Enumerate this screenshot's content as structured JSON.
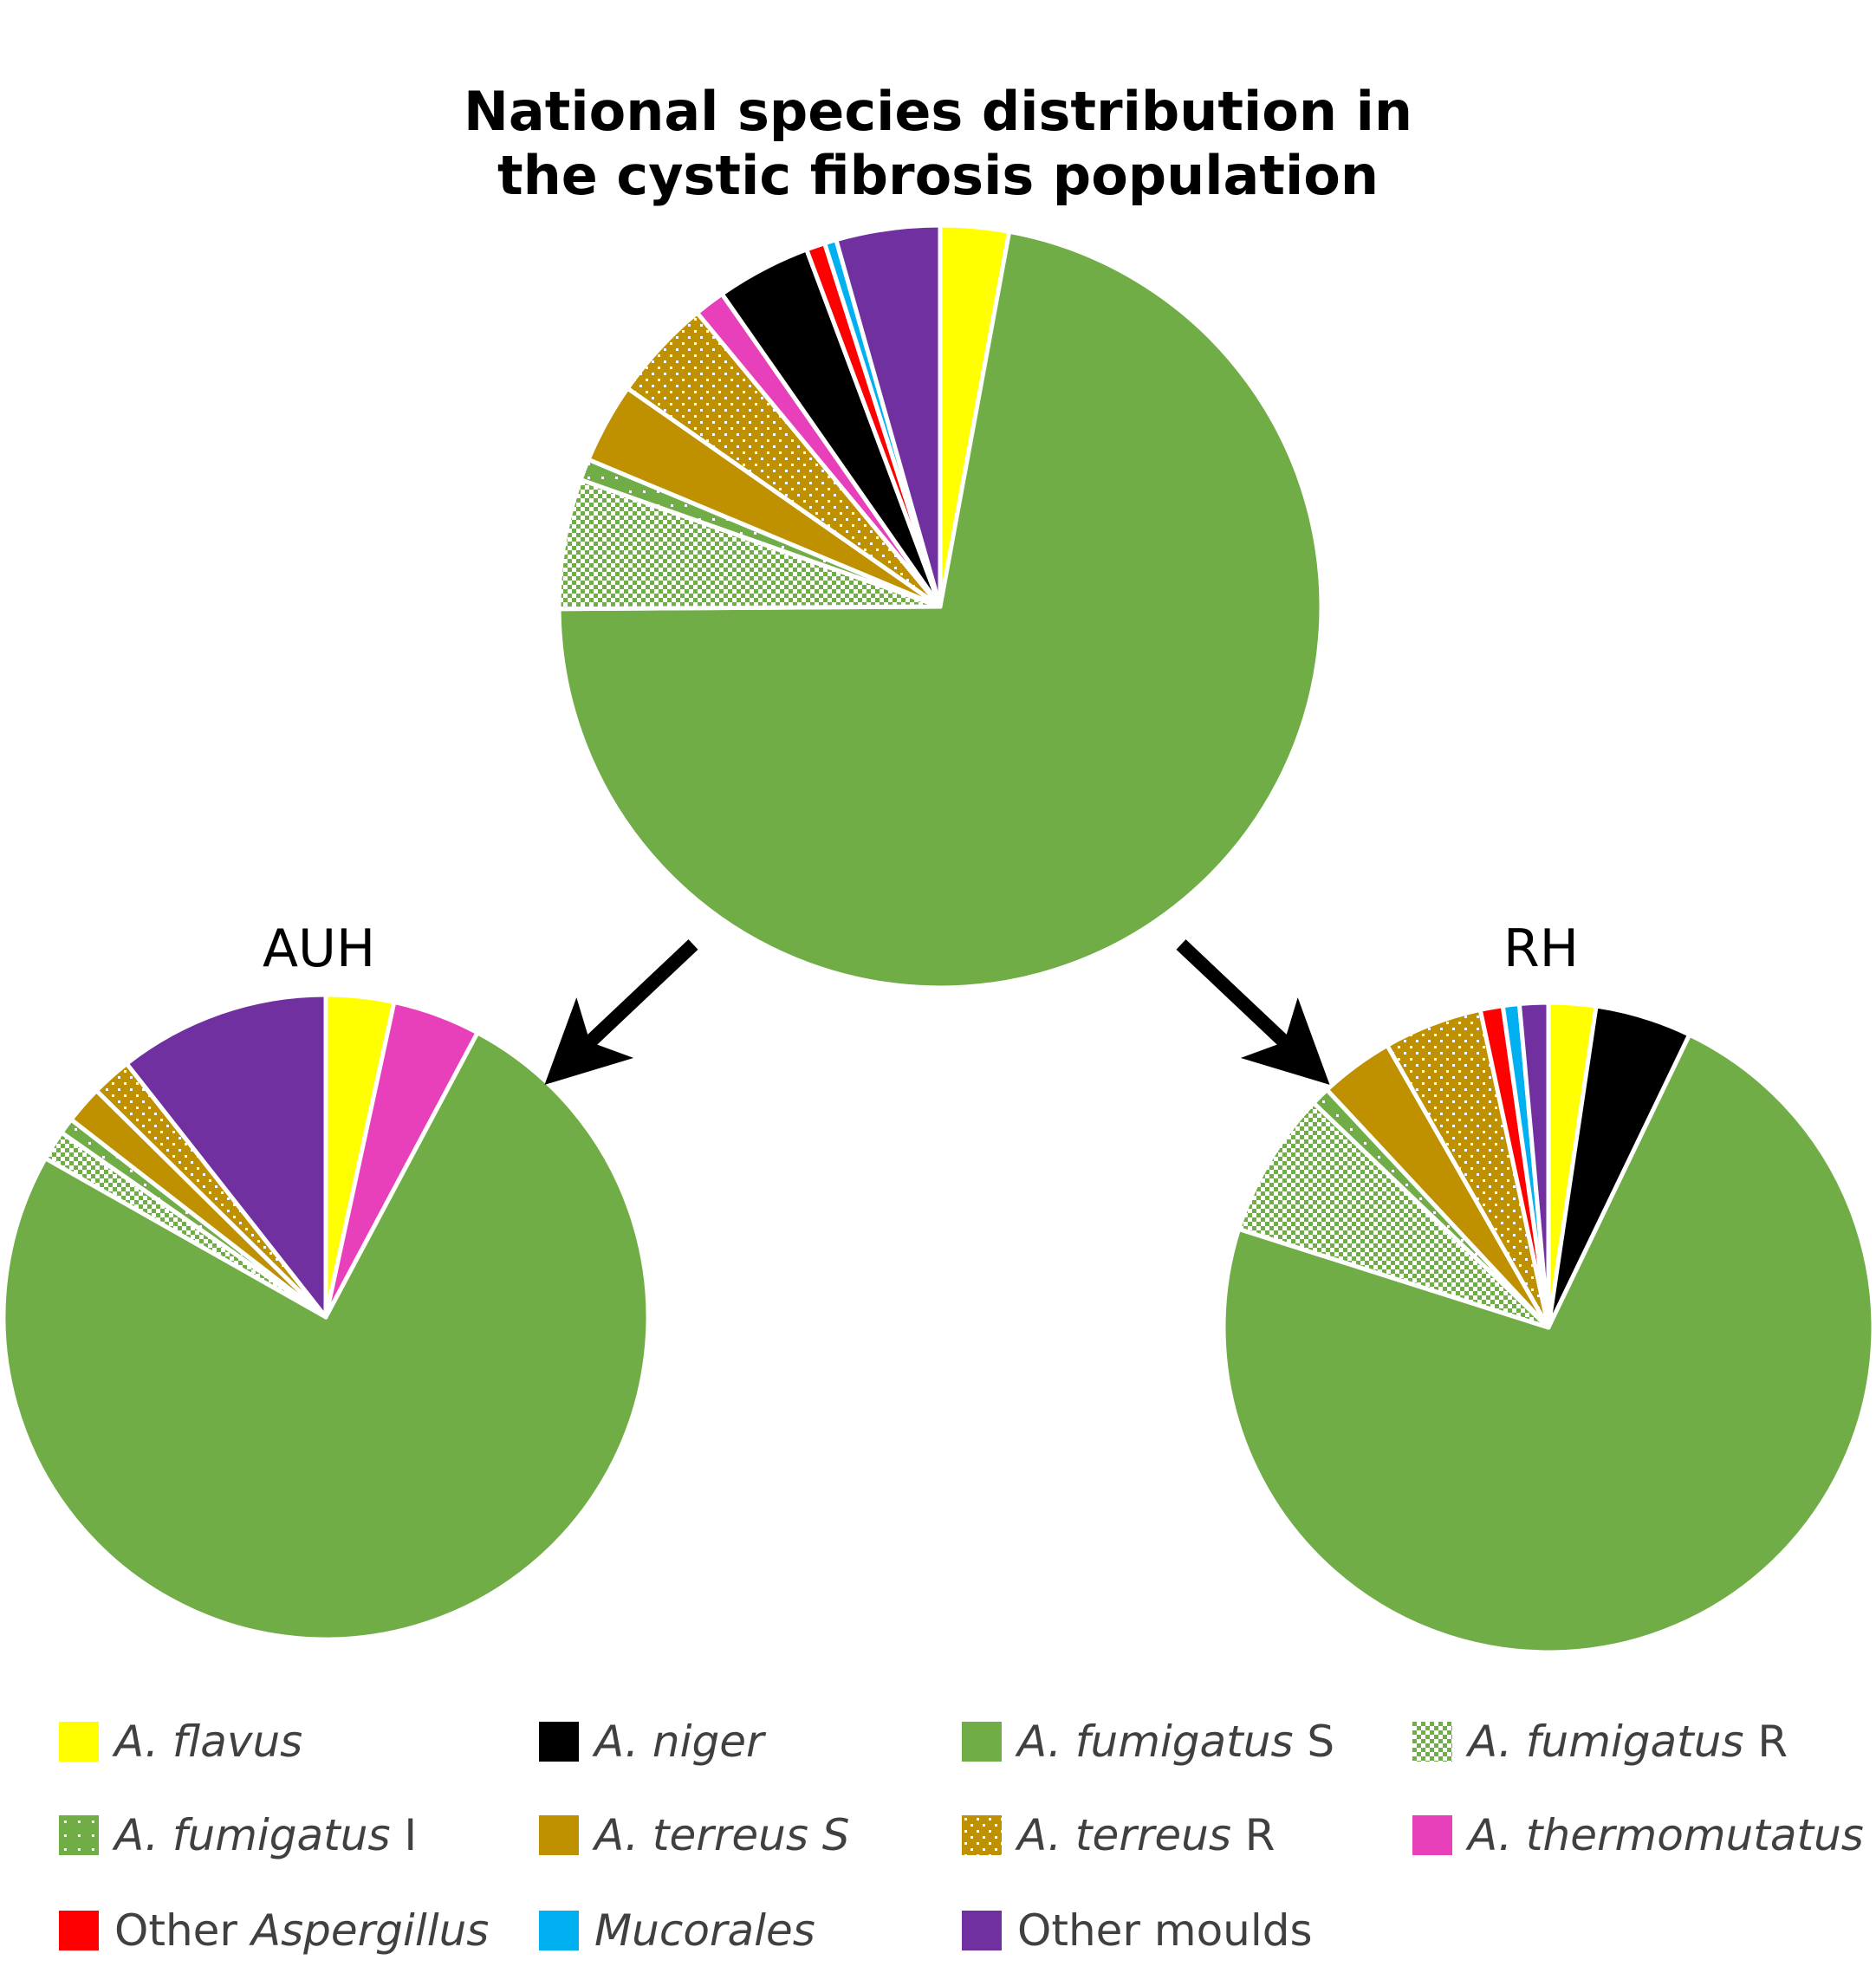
{
  "title_line1": "National species distribution in",
  "title_line2": "the cystic fibrosis population",
  "colors": {
    "A. flavus": "#ffff00",
    "A. niger": "#000000",
    "A. fumigatus S": "#70ad47",
    "A. fumigatus R": "#70ad47",
    "A. fumigatus I": "#70ad47",
    "A. terreus S": "#bf9000",
    "A. terreus R": "#bf9000",
    "A. thermomutatus": "#e83fba",
    "Other Aspergillus": "#ff0000",
    "Mucorales": "#00b0f0",
    "Other moulds": "#7030a0"
  },
  "patterns": {
    "A. fumigatus R": "checker",
    "A. fumigatus I": "sparse-dots",
    "A. terreus R": "dots"
  },
  "legend": [
    {
      "italic": "A. flavus",
      "plain": "",
      "key": "A. flavus"
    },
    {
      "italic": "A. niger",
      "plain": "",
      "key": "A. niger"
    },
    {
      "italic": "A. fumigatus",
      "plain": " S",
      "key": "A. fumigatus S"
    },
    {
      "italic": "A. fumigatus",
      "plain": " R",
      "key": "A. fumigatus R"
    },
    {
      "italic": "A. fumigatus",
      "plain": " I",
      "key": "A. fumigatus I"
    },
    {
      "italic": "A. terreus S",
      "plain": "",
      "key": "A. terreus S"
    },
    {
      "italic": "A. terreus",
      "plain": " R",
      "key": "A. terreus R"
    },
    {
      "italic": "A. thermomutatus",
      "plain": "",
      "key": "A. thermomutatus"
    },
    {
      "prefix": "Other ",
      "italic": "Aspergillus",
      "plain": "",
      "key": "Other Aspergillus"
    },
    {
      "italic": "Mucorales",
      "plain": "",
      "key": "Mucorales"
    },
    {
      "prefix": "Other moulds",
      "italic": "",
      "plain": "",
      "key": "Other moulds"
    }
  ],
  "chart_data": [
    {
      "type": "pie",
      "title": "National species distribution in the cystic fibrosis population",
      "unit": "percent",
      "slices": [
        {
          "label": "A. flavus",
          "value": 2.9
        },
        {
          "label": "A. fumigatus S",
          "value": 72.0
        },
        {
          "label": "A. fumigatus R",
          "value": 5.5
        },
        {
          "label": "A. fumigatus I",
          "value": 0.9
        },
        {
          "label": "A. terreus S",
          "value": 3.4
        },
        {
          "label": "A. terreus R",
          "value": 4.3
        },
        {
          "label": "A. thermomutatus",
          "value": 1.3
        },
        {
          "label": "A. niger",
          "value": 4.0
        },
        {
          "label": "Other Aspergillus",
          "value": 0.8
        },
        {
          "label": "Mucorales",
          "value": 0.5
        },
        {
          "label": "Other moulds",
          "value": 4.4
        }
      ]
    },
    {
      "type": "pie",
      "title": "AUH",
      "unit": "percent",
      "slices": [
        {
          "label": "A. flavus",
          "value": 3.4
        },
        {
          "label": "A. thermomutatus",
          "value": 4.4
        },
        {
          "label": "A. fumigatus S",
          "value": 75.4
        },
        {
          "label": "A. fumigatus R",
          "value": 1.5
        },
        {
          "label": "A. fumigatus I",
          "value": 0.8
        },
        {
          "label": "A. terreus S",
          "value": 1.9
        },
        {
          "label": "A. terreus R",
          "value": 2.0
        },
        {
          "label": "Other moulds",
          "value": 10.6
        }
      ]
    },
    {
      "type": "pie",
      "title": "RH",
      "unit": "percent",
      "slices": [
        {
          "label": "A. flavus",
          "value": 2.3
        },
        {
          "label": "A. niger",
          "value": 4.7
        },
        {
          "label": "A. fumigatus S",
          "value": 71.3
        },
        {
          "label": "A. fumigatus R",
          "value": 7.1
        },
        {
          "label": "A. fumigatus I",
          "value": 0.9
        },
        {
          "label": "A. terreus S",
          "value": 3.6
        },
        {
          "label": "A. terreus R",
          "value": 4.8
        },
        {
          "label": "Other Aspergillus",
          "value": 1.1
        },
        {
          "label": "Mucorales",
          "value": 0.8
        },
        {
          "label": "Other moulds",
          "value": 1.4
        }
      ]
    }
  ]
}
